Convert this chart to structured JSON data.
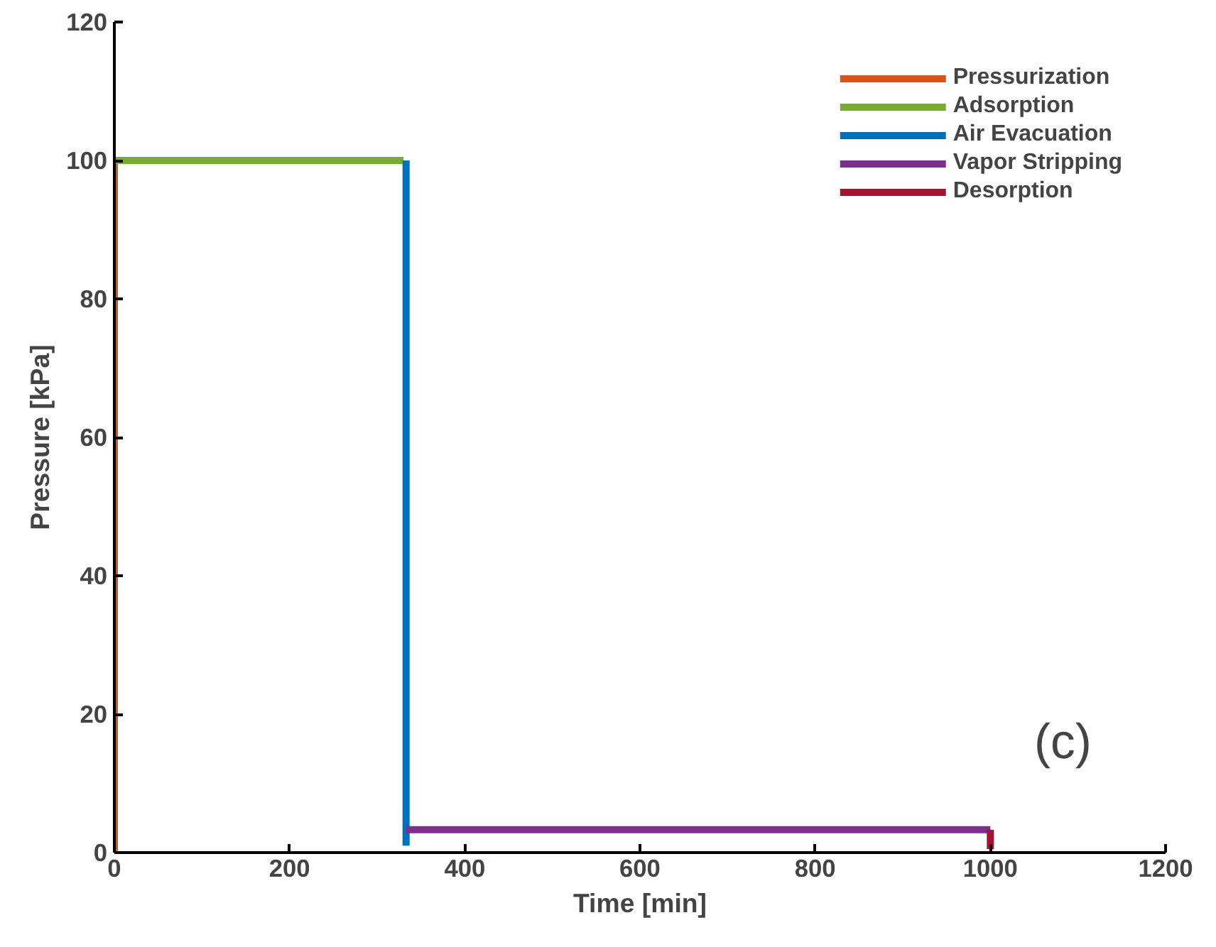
{
  "chart_data": {
    "type": "line",
    "xlabel": "Time [min]",
    "ylabel": "Pressure [kPa]",
    "series": [
      {
        "name": "Pressurization",
        "color": "#d95319",
        "x": [
          0,
          0
        ],
        "values": [
          0,
          100
        ]
      },
      {
        "name": "Adsorption",
        "color": "#77ac30",
        "x": [
          0,
          330
        ],
        "values": [
          100,
          100
        ]
      },
      {
        "name": "Air Evacuation",
        "color": "#0072bd",
        "x": [
          333,
          333
        ],
        "values": [
          100,
          1
        ]
      },
      {
        "name": "Vapor Stripping",
        "color": "#7e2f8e",
        "x": [
          333,
          1000
        ],
        "values": [
          3.3,
          3.3
        ]
      },
      {
        "name": "Desorption",
        "color": "#a2142f",
        "x": [
          1000,
          1000
        ],
        "values": [
          3.3,
          0.5
        ]
      }
    ],
    "xlim": [
      0,
      1200
    ],
    "ylim": [
      0,
      120
    ],
    "xticks": [
      0,
      200,
      400,
      600,
      800,
      1000,
      1200
    ],
    "yticks": [
      0,
      20,
      40,
      60,
      80,
      100,
      120
    ],
    "grid": false,
    "legend": "top right",
    "line_style": "solid",
    "annotations": [
      "(c)"
    ]
  }
}
